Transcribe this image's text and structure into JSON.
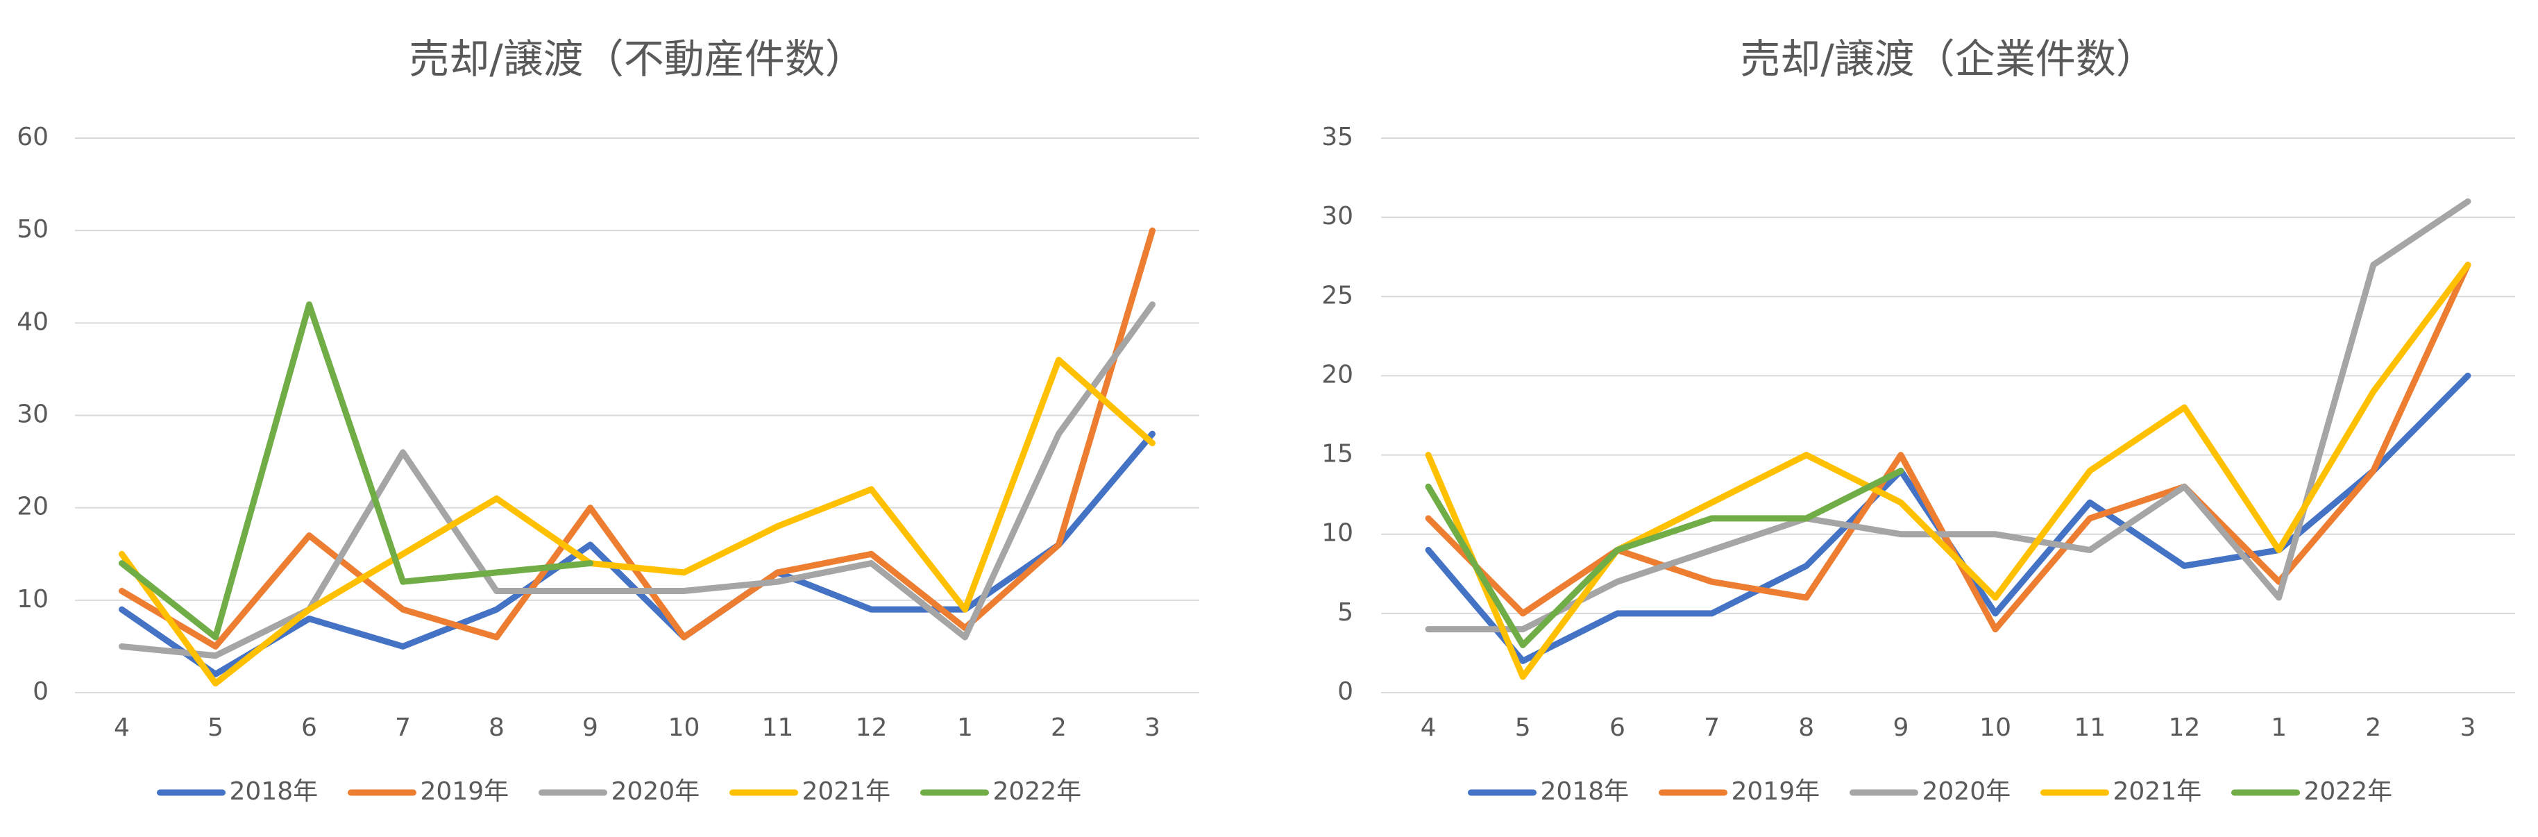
{
  "chart_data": [
    {
      "type": "line",
      "title": "売却/譲渡（不動産件数）",
      "categories": [
        "4",
        "5",
        "6",
        "7",
        "8",
        "9",
        "10",
        "11",
        "12",
        "1",
        "2",
        "3"
      ],
      "series": [
        {
          "name": "2018年",
          "color": "#4472c4",
          "values": [
            9,
            2,
            8,
            5,
            9,
            16,
            6,
            13,
            9,
            9,
            16,
            28
          ]
        },
        {
          "name": "2019年",
          "color": "#ed7d31",
          "values": [
            11,
            5,
            17,
            9,
            6,
            20,
            6,
            13,
            15,
            7,
            16,
            50
          ]
        },
        {
          "name": "2020年",
          "color": "#a5a5a5",
          "values": [
            5,
            4,
            9,
            26,
            11,
            11,
            11,
            12,
            14,
            6,
            28,
            42
          ]
        },
        {
          "name": "2021年",
          "color": "#ffc000",
          "values": [
            15,
            1,
            9,
            15,
            21,
            14,
            13,
            18,
            22,
            9,
            36,
            27
          ]
        },
        {
          "name": "2022年",
          "color": "#70ad47",
          "values": [
            14,
            6,
            42,
            12,
            13,
            14,
            null,
            null,
            null,
            null,
            null,
            null
          ]
        }
      ],
      "ylim": [
        0,
        60
      ],
      "yticks": [
        0,
        10,
        20,
        30,
        40,
        50,
        60
      ],
      "grid": true,
      "legend": "bottom"
    },
    {
      "type": "line",
      "title": "売却/譲渡（企業件数）",
      "categories": [
        "4",
        "5",
        "6",
        "7",
        "8",
        "9",
        "10",
        "11",
        "12",
        "1",
        "2",
        "3"
      ],
      "series": [
        {
          "name": "2018年",
          "color": "#4472c4",
          "values": [
            9,
            2,
            5,
            5,
            8,
            14,
            5,
            12,
            8,
            9,
            14,
            20
          ]
        },
        {
          "name": "2019年",
          "color": "#ed7d31",
          "values": [
            11,
            5,
            9,
            7,
            6,
            15,
            4,
            11,
            13,
            7,
            14,
            27
          ]
        },
        {
          "name": "2020年",
          "color": "#a5a5a5",
          "values": [
            4,
            4,
            7,
            9,
            11,
            10,
            10,
            9,
            13,
            6,
            27,
            31
          ]
        },
        {
          "name": "2021年",
          "color": "#ffc000",
          "values": [
            15,
            1,
            9,
            12,
            15,
            12,
            6,
            14,
            18,
            9,
            19,
            27
          ]
        },
        {
          "name": "2022年",
          "color": "#70ad47",
          "values": [
            13,
            3,
            9,
            11,
            11,
            14,
            null,
            null,
            null,
            null,
            null,
            null
          ]
        }
      ],
      "ylim": [
        0,
        35
      ],
      "yticks": [
        0,
        5,
        10,
        15,
        20,
        25,
        30,
        35
      ],
      "grid": true,
      "legend": "bottom"
    }
  ]
}
